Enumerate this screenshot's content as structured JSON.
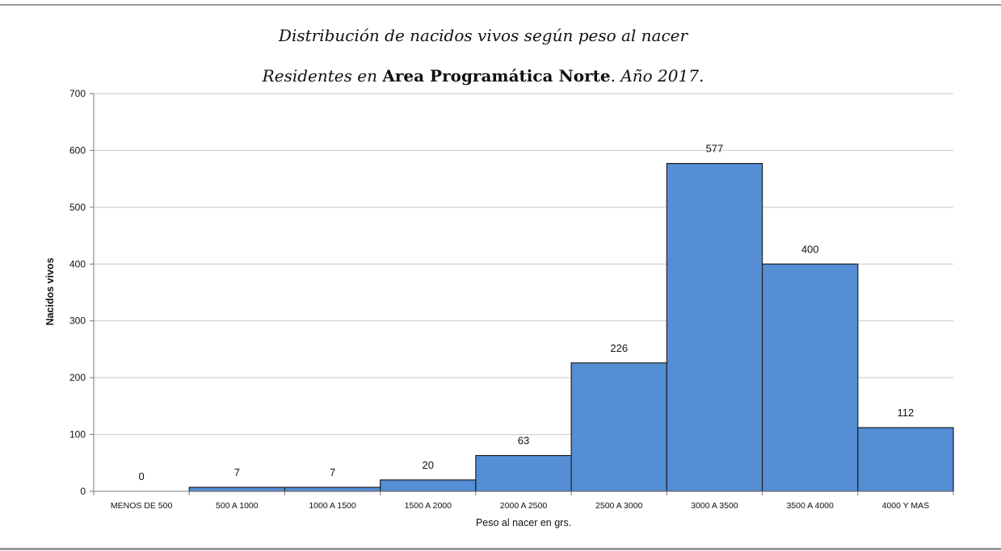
{
  "chart_data": {
    "type": "bar",
    "title": "Distribución de nacidos vivos según peso al nacer",
    "subtitle_prefix": "Residentes en ",
    "subtitle_bold": "Area Programática Norte",
    "subtitle_suffix": ". Año 2017.",
    "xlabel": "Peso al nacer en grs.",
    "ylabel": "Nacidos vivos",
    "ylim": [
      0,
      700
    ],
    "yticks": [
      "0",
      "100",
      "200",
      "300",
      "400",
      "500",
      "600",
      "700"
    ],
    "grid": true,
    "categories": [
      "MENOS DE 500",
      "500 A 1000",
      "1000 A 1500",
      "1500 A 2000",
      "2000 A 2500",
      "2500 A 3000",
      "3000 A 3500",
      "3500 A 4000",
      "4000 Y MAS"
    ],
    "values": [
      0,
      7,
      7,
      20,
      63,
      226,
      577,
      400,
      112
    ],
    "bar_color": "#558ed5",
    "bar_edge_color": "#1f1f1f"
  }
}
